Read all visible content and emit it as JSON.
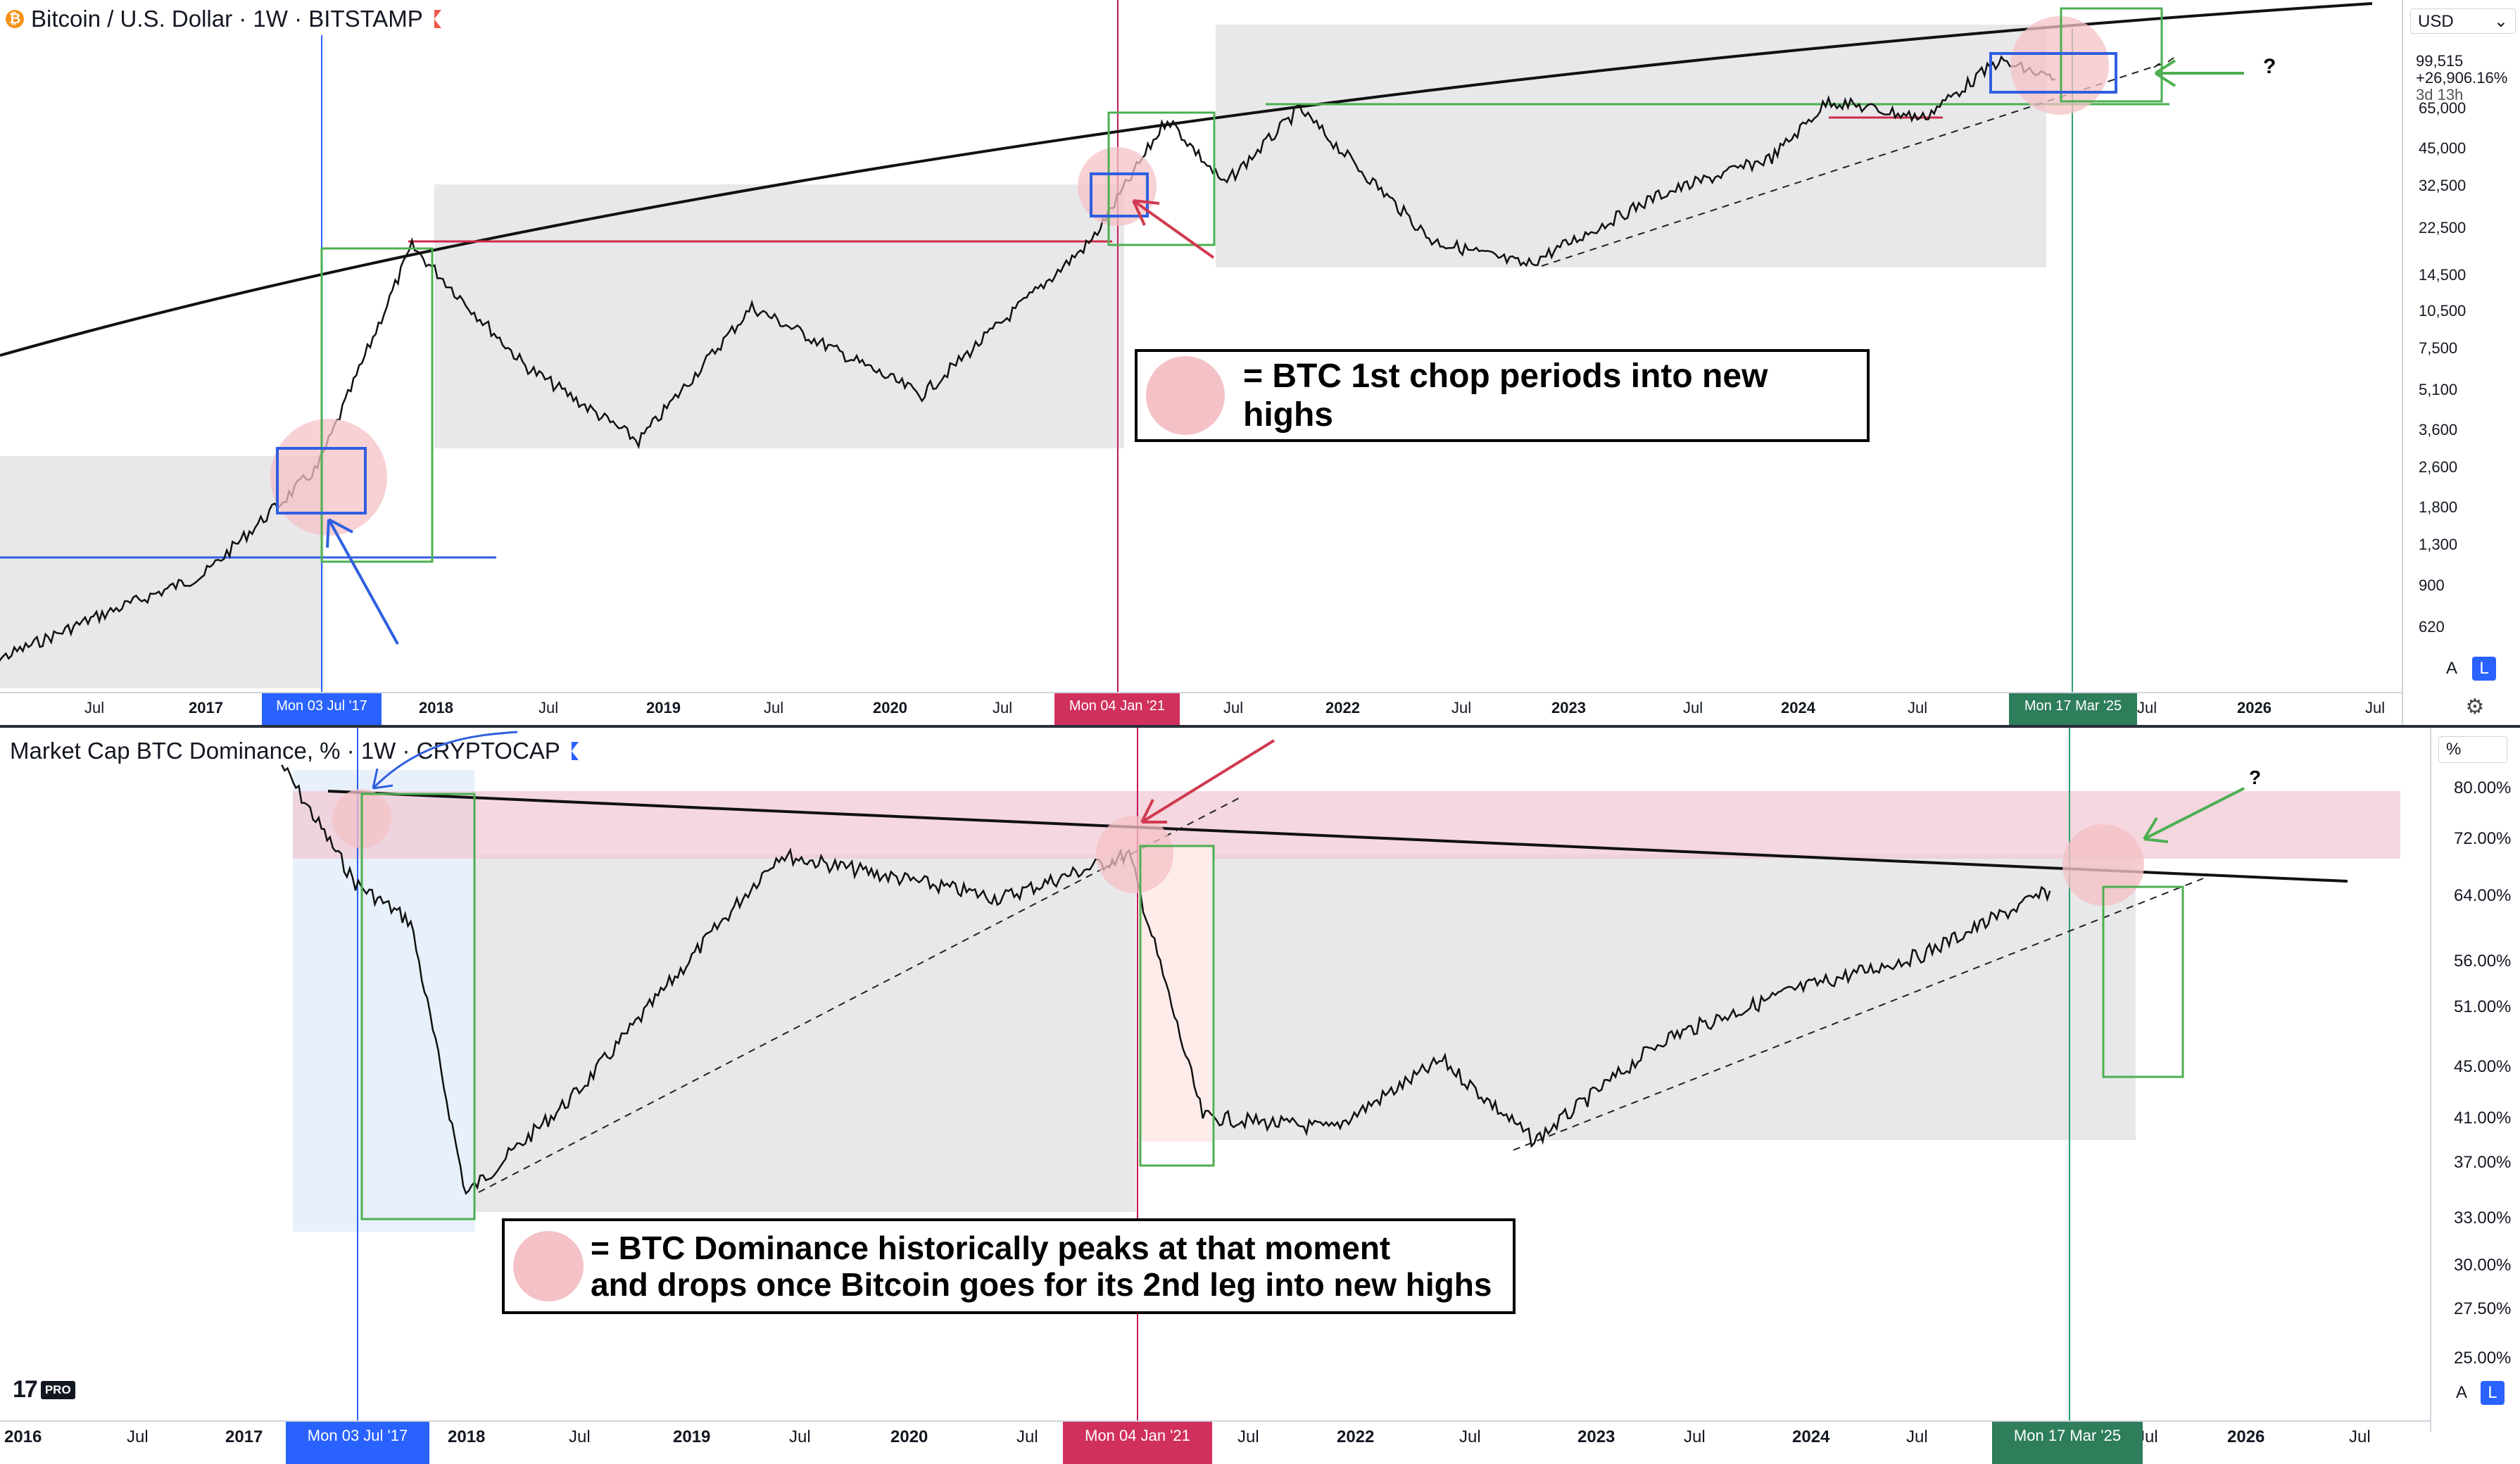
{
  "top_panel": {
    "symbol_title": "Bitcoin / U.S. Dollar · 1W · BITSTAMP",
    "currency_label": "USD",
    "last_price": "99,515",
    "change_pct": "+26,906.16%",
    "countdown": "3d 13h",
    "price_ticks": [
      "65,000",
      "45,000",
      "32,500",
      "22,500",
      "14,500",
      "10,500",
      "7,500",
      "5,100",
      "3,600",
      "2,600",
      "1,800",
      "1,300",
      "900",
      "620"
    ],
    "time_ticks": [
      "Jul",
      "2017",
      "2018",
      "Jul",
      "2019",
      "Jul",
      "2020",
      "Jul",
      "Jul",
      "2022",
      "Jul",
      "2023",
      "Jul",
      "2024",
      "Jul",
      "Jul",
      "2026",
      "Jul"
    ],
    "date_markers": [
      "Mon 03 Jul '17",
      "Mon 04 Jan '21",
      "Mon 17 Mar '25"
    ],
    "annotation_question": "?",
    "legend_text": "= BTC 1st chop periods into new highs",
    "axis_mode_a": "A",
    "axis_mode_l": "L"
  },
  "bottom_panel": {
    "symbol_title": "Market Cap BTC Dominance, % · 1W · CRYPTOCAP",
    "unit_label": "%",
    "pct_ticks": [
      "80.00%",
      "72.00%",
      "64.00%",
      "56.00%",
      "51.00%",
      "45.00%",
      "41.00%",
      "37.00%",
      "33.00%",
      "30.00%",
      "27.50%",
      "25.00%"
    ],
    "time_ticks": [
      "2016",
      "Jul",
      "2017",
      "2018",
      "Jul",
      "2019",
      "Jul",
      "2020",
      "Jul",
      "Jul",
      "2022",
      "Jul",
      "2023",
      "Jul",
      "2024",
      "Jul",
      "Jul",
      "2026",
      "Jul"
    ],
    "date_markers": [
      "Mon 03 Jul '17",
      "Mon 04 Jan '21",
      "Mon 17 Mar '25"
    ],
    "annotation_question": "?",
    "legend_line1": "= BTC Dominance historically peaks at that moment",
    "legend_line2": "and drops once Bitcoin goes for its 2nd leg into new highs",
    "axis_mode_a": "A",
    "axis_mode_l": "L"
  },
  "branding": {
    "logo_text": "17",
    "badge": "PRO"
  },
  "colors": {
    "marker_blue": "#2962ff",
    "marker_red": "#d0305d",
    "marker_green": "#2e7d5b",
    "highlight_circle": "#f4c1c6",
    "box_green": "#4caf50",
    "box_blue": "#2f5fe0",
    "resistance_red": "#cc2b4a"
  },
  "chart_data": [
    {
      "type": "line",
      "title": "Bitcoin / U.S. Dollar · 1W · BITSTAMP",
      "y_scale": "log",
      "ylim": [
        500,
        110000
      ],
      "x": [
        "2016-01",
        "2016-07",
        "2017-01",
        "2017-07",
        "2017-12",
        "2018-06",
        "2018-12",
        "2019-06",
        "2020-03",
        "2020-12",
        "2021-04",
        "2021-07",
        "2021-11",
        "2022-06",
        "2022-11",
        "2023-06",
        "2023-12",
        "2024-03",
        "2024-08",
        "2024-12",
        "2025-03"
      ],
      "series": [
        {
          "values": [
            430,
            670,
            1000,
            2600,
            19000,
            6500,
            3300,
            11000,
            5000,
            20000,
            60000,
            33000,
            65000,
            20000,
            16000,
            30000,
            42000,
            70000,
            60000,
            100000,
            85000
          ]
        }
      ],
      "annotations": [
        "= BTC 1st chop periods into new highs",
        "?"
      ]
    },
    {
      "type": "line",
      "title": "Market Cap BTC Dominance, % · 1W · CRYPTOCAP",
      "y_scale": "log",
      "ylim": [
        24,
        86
      ],
      "x": [
        "2017-03",
        "2017-07",
        "2017-10",
        "2018-01",
        "2018-07",
        "2019-06",
        "2020-06",
        "2021-01",
        "2021-05",
        "2021-12",
        "2022-06",
        "2022-11",
        "2023-06",
        "2024-01",
        "2024-08",
        "2025-03"
      ],
      "series": [
        {
          "values": [
            84,
            66,
            61,
            35,
            43,
            70,
            64,
            70,
            41,
            40,
            46,
            39,
            48,
            53,
            57,
            65
          ]
        }
      ],
      "annotations": [
        "= BTC Dominance historically peaks at that moment",
        "and drops once Bitcoin goes for its 2nd leg into new highs",
        "?"
      ]
    }
  ]
}
